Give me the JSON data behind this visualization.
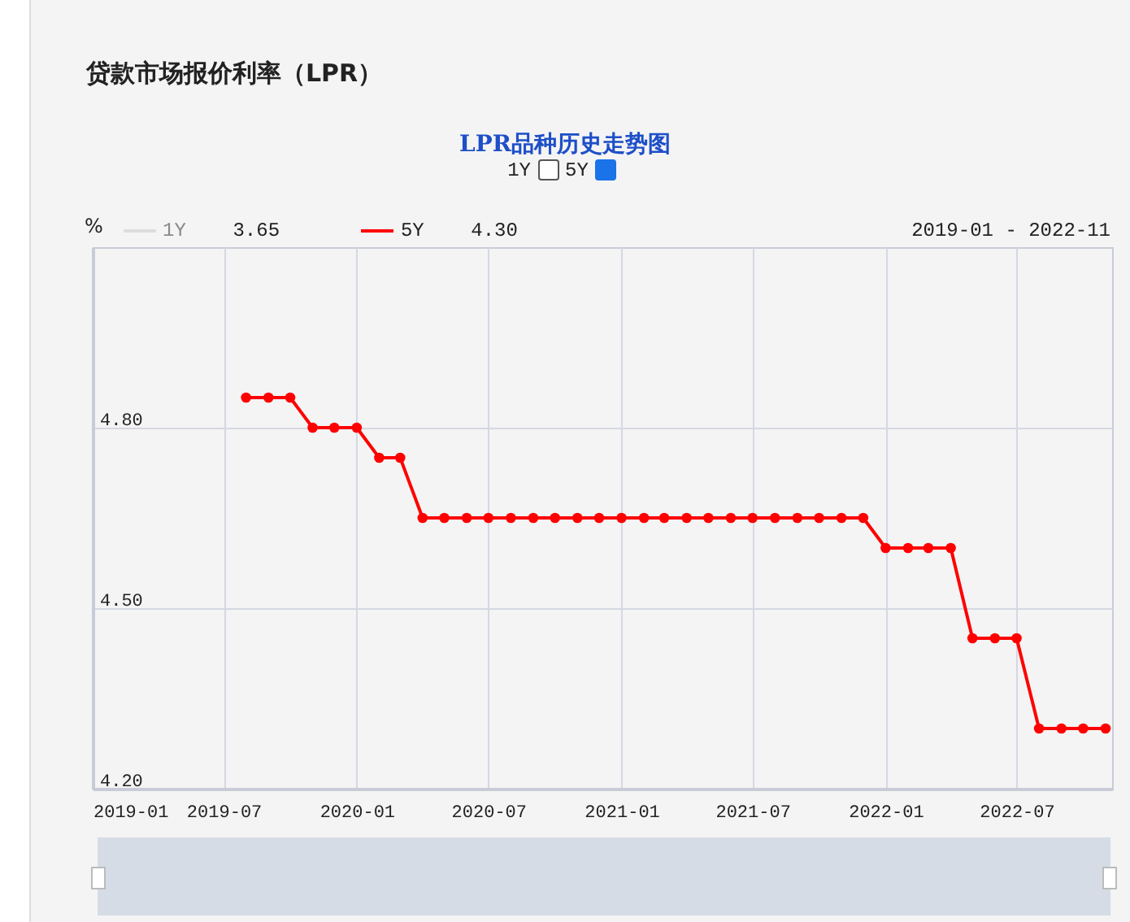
{
  "chart_data": {
    "type": "line",
    "title": "贷款市场报价利率（LPR）",
    "subtitle": "LPR品种历史走势图",
    "ylabel": "%",
    "x": [
      "2019-08",
      "2019-09",
      "2019-10",
      "2019-11",
      "2019-12",
      "2020-01",
      "2020-02",
      "2020-03",
      "2020-04",
      "2020-05",
      "2020-06",
      "2020-07",
      "2020-08",
      "2020-09",
      "2020-10",
      "2020-11",
      "2020-12",
      "2021-01",
      "2021-02",
      "2021-03",
      "2021-04",
      "2021-05",
      "2021-06",
      "2021-07",
      "2021-08",
      "2021-09",
      "2021-10",
      "2021-11",
      "2021-12",
      "2022-01",
      "2022-02",
      "2022-03",
      "2022-04",
      "2022-05",
      "2022-06",
      "2022-07",
      "2022-08",
      "2022-09",
      "2022-10",
      "2022-11"
    ],
    "series": [
      {
        "name": "5Y",
        "color": "#ff0000",
        "values": [
          4.85,
          4.85,
          4.85,
          4.8,
          4.8,
          4.8,
          4.75,
          4.75,
          4.65,
          4.65,
          4.65,
          4.65,
          4.65,
          4.65,
          4.65,
          4.65,
          4.65,
          4.65,
          4.65,
          4.65,
          4.65,
          4.65,
          4.65,
          4.65,
          4.65,
          4.65,
          4.65,
          4.65,
          4.65,
          4.6,
          4.6,
          4.6,
          4.6,
          4.45,
          4.45,
          4.45,
          4.3,
          4.3,
          4.3,
          4.3
        ]
      }
    ],
    "xlim": [
      "2019-01",
      "2022-11-10"
    ],
    "xticks": [
      "2019-01",
      "2019-07",
      "2020-01",
      "2020-07",
      "2021-01",
      "2021-07",
      "2022-01",
      "2022-07"
    ],
    "ylim": [
      4.2,
      5.1
    ],
    "yticks": [
      {
        "value": 4.2,
        "label": "4.20"
      },
      {
        "value": 4.5,
        "label": "4.50"
      },
      {
        "value": 4.8,
        "label": "4.80"
      }
    ],
    "grid": true,
    "marker": "circle",
    "line_style": "solid",
    "legend": "top left",
    "annotations": [
      "1Y",
      "3.65",
      "4.30",
      "2019-01 - 2022-11"
    ]
  }
}
